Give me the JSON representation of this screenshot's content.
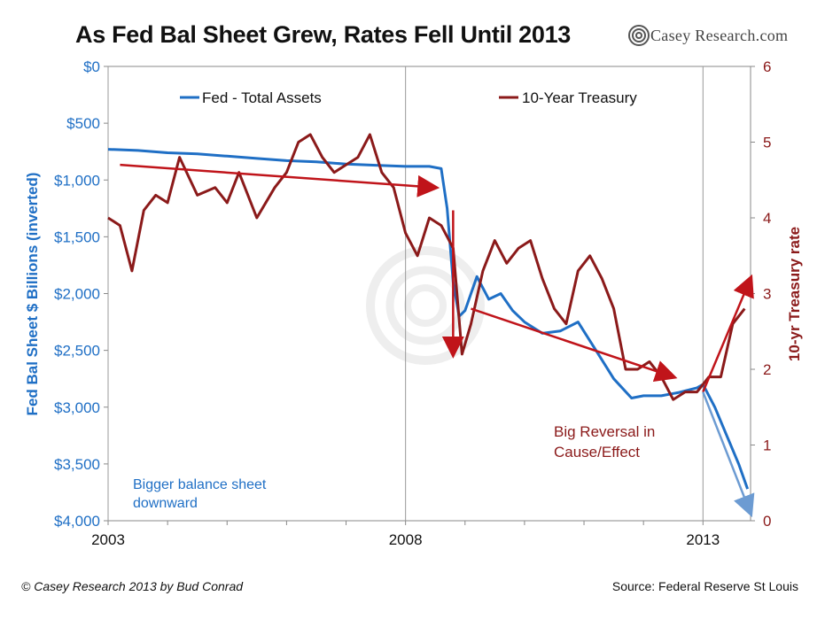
{
  "title": "As Fed Bal Sheet Grew, Rates Fell Until 2013",
  "logo": {
    "text": "Casey Research.com",
    "icon": "spiral-logo-icon"
  },
  "footer": {
    "copyright": "© Casey Research 2013 by Bud Conrad",
    "source": "Source: Federal Reserve St Louis"
  },
  "colors": {
    "fed": "#1f6fc5",
    "treasury": "#8b1a1a",
    "trend_red": "#c0141a",
    "trend_blue": "#6c9bd2"
  },
  "chart_data": {
    "type": "line",
    "xlabel": "",
    "x_ticks": [
      "2003",
      "2008",
      "2013"
    ],
    "xlim": [
      2003,
      2013.8
    ],
    "left_axis": {
      "label": "Fed Bal Sheet $ Billions (inverted)",
      "ticks": [
        "$0",
        "$500",
        "$1,000",
        "$1,500",
        "$2,000",
        "$2,500",
        "$3,000",
        "$3,500",
        "$4,000"
      ],
      "range": [
        0,
        4000
      ],
      "inverted": true
    },
    "right_axis": {
      "label": "10-yr Treasury rate",
      "ticks": [
        "0",
        "1",
        "2",
        "3",
        "4",
        "5",
        "6"
      ],
      "range": [
        0,
        6
      ]
    },
    "legend": {
      "placement": "top"
    },
    "series": [
      {
        "name": "Fed - Total Assets",
        "axis": "left",
        "x": [
          2003.0,
          2003.5,
          2004.0,
          2004.5,
          2005.0,
          2005.5,
          2006.0,
          2006.5,
          2007.0,
          2007.5,
          2008.0,
          2008.4,
          2008.6,
          2008.7,
          2008.8,
          2008.9,
          2009.0,
          2009.2,
          2009.4,
          2009.6,
          2009.8,
          2010.0,
          2010.3,
          2010.6,
          2010.9,
          2011.2,
          2011.5,
          2011.8,
          2012.0,
          2012.3,
          2012.6,
          2012.9,
          2013.0,
          2013.2,
          2013.4,
          2013.6,
          2013.75
        ],
        "y": [
          730,
          740,
          760,
          770,
          790,
          810,
          830,
          840,
          860,
          870,
          880,
          880,
          900,
          1250,
          1900,
          2200,
          2150,
          1850,
          2050,
          2000,
          2150,
          2250,
          2350,
          2330,
          2250,
          2500,
          2750,
          2920,
          2900,
          2900,
          2870,
          2830,
          2800,
          3000,
          3250,
          3500,
          3720
        ]
      },
      {
        "name": "10-Year Treasury",
        "axis": "right",
        "x": [
          2003.0,
          2003.2,
          2003.4,
          2003.6,
          2003.8,
          2004.0,
          2004.2,
          2004.5,
          2004.8,
          2005.0,
          2005.2,
          2005.5,
          2005.8,
          2006.0,
          2006.2,
          2006.4,
          2006.6,
          2006.8,
          2007.0,
          2007.2,
          2007.4,
          2007.6,
          2007.8,
          2008.0,
          2008.2,
          2008.4,
          2008.6,
          2008.8,
          2008.95,
          2009.1,
          2009.3,
          2009.5,
          2009.7,
          2009.9,
          2010.1,
          2010.3,
          2010.5,
          2010.7,
          2010.9,
          2011.1,
          2011.3,
          2011.5,
          2011.7,
          2011.9,
          2012.1,
          2012.3,
          2012.5,
          2012.7,
          2012.9,
          2013.1,
          2013.3,
          2013.5,
          2013.7
        ],
        "y": [
          4.0,
          3.9,
          3.3,
          4.1,
          4.3,
          4.2,
          4.8,
          4.3,
          4.4,
          4.2,
          4.6,
          4.0,
          4.4,
          4.6,
          5.0,
          5.1,
          4.8,
          4.6,
          4.7,
          4.8,
          5.1,
          4.6,
          4.4,
          3.8,
          3.5,
          4.0,
          3.9,
          3.6,
          2.2,
          2.6,
          3.3,
          3.7,
          3.4,
          3.6,
          3.7,
          3.2,
          2.8,
          2.6,
          3.3,
          3.5,
          3.2,
          2.8,
          2.0,
          2.0,
          2.1,
          1.9,
          1.6,
          1.7,
          1.7,
          1.9,
          1.9,
          2.6,
          2.8
        ]
      }
    ],
    "annotations": [
      {
        "text_lines": [
          "Big Reversal in",
          "Cause/Effect"
        ],
        "color": "#8b1a1a"
      },
      {
        "text_lines": [
          "Bigger balance sheet",
          "downward"
        ],
        "color": "#1f6fc5"
      }
    ],
    "trend_arrows": [
      {
        "color": "red",
        "from": [
          2003.2,
          4.7
        ],
        "to": [
          2008.5,
          4.4
        ],
        "axis": "right"
      },
      {
        "color": "red",
        "from": [
          2008.8,
          4.1
        ],
        "to": [
          2008.8,
          2.2
        ],
        "axis": "right"
      },
      {
        "color": "red",
        "from": [
          2009.1,
          2.8
        ],
        "to": [
          2012.5,
          1.9
        ],
        "axis": "right"
      },
      {
        "color": "red",
        "from": [
          2013.0,
          1.7
        ],
        "to": [
          2013.8,
          3.2
        ],
        "axis": "right"
      },
      {
        "color": "blue",
        "from": [
          2013.0,
          1.7
        ],
        "to": [
          2013.8,
          0.1
        ],
        "axis": "right"
      }
    ]
  }
}
